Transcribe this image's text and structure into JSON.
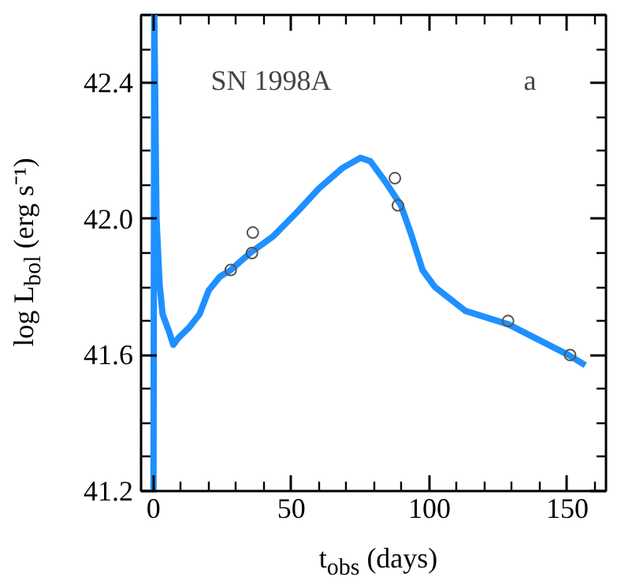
{
  "chart_data": {
    "type": "line",
    "xlabel": "t$_{obs}$ (days)",
    "ylabel": "log L$_{bol}$ (erg s⁻¹)",
    "annotations": [
      "SN 1998A",
      "a"
    ],
    "xlim": [
      -4.5,
      164
    ],
    "ylim": [
      41.2,
      42.6
    ],
    "xticks": [
      0,
      {
        "value": 10,
        "label": null
      },
      {
        "value": 20,
        "label": null
      },
      {
        "value": 30,
        "label": null
      },
      {
        "value": 40,
        "label": null
      },
      50,
      {
        "value": 60,
        "label": null
      },
      {
        "value": 70,
        "label": null
      },
      {
        "value": 80,
        "label": null
      },
      {
        "value": 90,
        "label": null
      },
      100,
      {
        "value": 110,
        "label": null
      },
      {
        "value": 120,
        "label": null
      },
      {
        "value": 130,
        "label": null
      },
      {
        "value": 140,
        "label": null
      },
      150,
      {
        "value": 160,
        "label": null
      }
    ],
    "yticks": [
      {
        "value": 41.2,
        "label": "41.2"
      },
      {
        "value": 41.3,
        "label": null
      },
      {
        "value": 41.4,
        "label": null
      },
      {
        "value": 41.5,
        "label": null
      },
      {
        "value": 41.6,
        "label": "41.6"
      },
      {
        "value": 41.7,
        "label": null
      },
      {
        "value": 41.8,
        "label": null
      },
      {
        "value": 41.9,
        "label": null
      },
      {
        "value": 42.0,
        "label": "42.0"
      },
      {
        "value": 42.1,
        "label": null
      },
      {
        "value": 42.2,
        "label": null
      },
      {
        "value": 42.3,
        "label": null
      },
      {
        "value": 42.4,
        "label": "42.4"
      },
      {
        "value": 42.5,
        "label": null
      },
      {
        "value": 42.6,
        "label": null
      }
    ],
    "grid": false,
    "series": [
      {
        "color": "#1e90ff",
        "x": [
          0,
          0.3,
          1.1,
          2.2,
          3.3,
          5.6,
          7.2,
          9,
          12.8,
          16.7,
          20,
          24,
          28,
          35,
          43.5,
          52,
          60,
          68.5,
          75,
          78.6,
          84,
          89.7,
          93.6,
          97.5,
          102,
          113,
          128.7,
          150.4,
          156.5
        ],
        "values": [
          41.2,
          42.6,
          42.0,
          41.81,
          41.72,
          41.67,
          41.63,
          41.65,
          41.68,
          41.72,
          41.79,
          41.83,
          41.85,
          41.9,
          41.95,
          42.02,
          42.09,
          42.15,
          42.18,
          42.17,
          42.11,
          42.04,
          41.95,
          41.85,
          41.8,
          41.73,
          41.69,
          41.6,
          41.57
        ]
      },
      {
        "type": "scatter",
        "color": "#555555",
        "marker": "circle",
        "x": [
          28,
          35.7,
          36,
          87.5,
          88.6,
          128.5,
          151
        ],
        "values": [
          41.85,
          41.9,
          41.96,
          42.12,
          42.04,
          41.7,
          41.6
        ]
      }
    ]
  }
}
